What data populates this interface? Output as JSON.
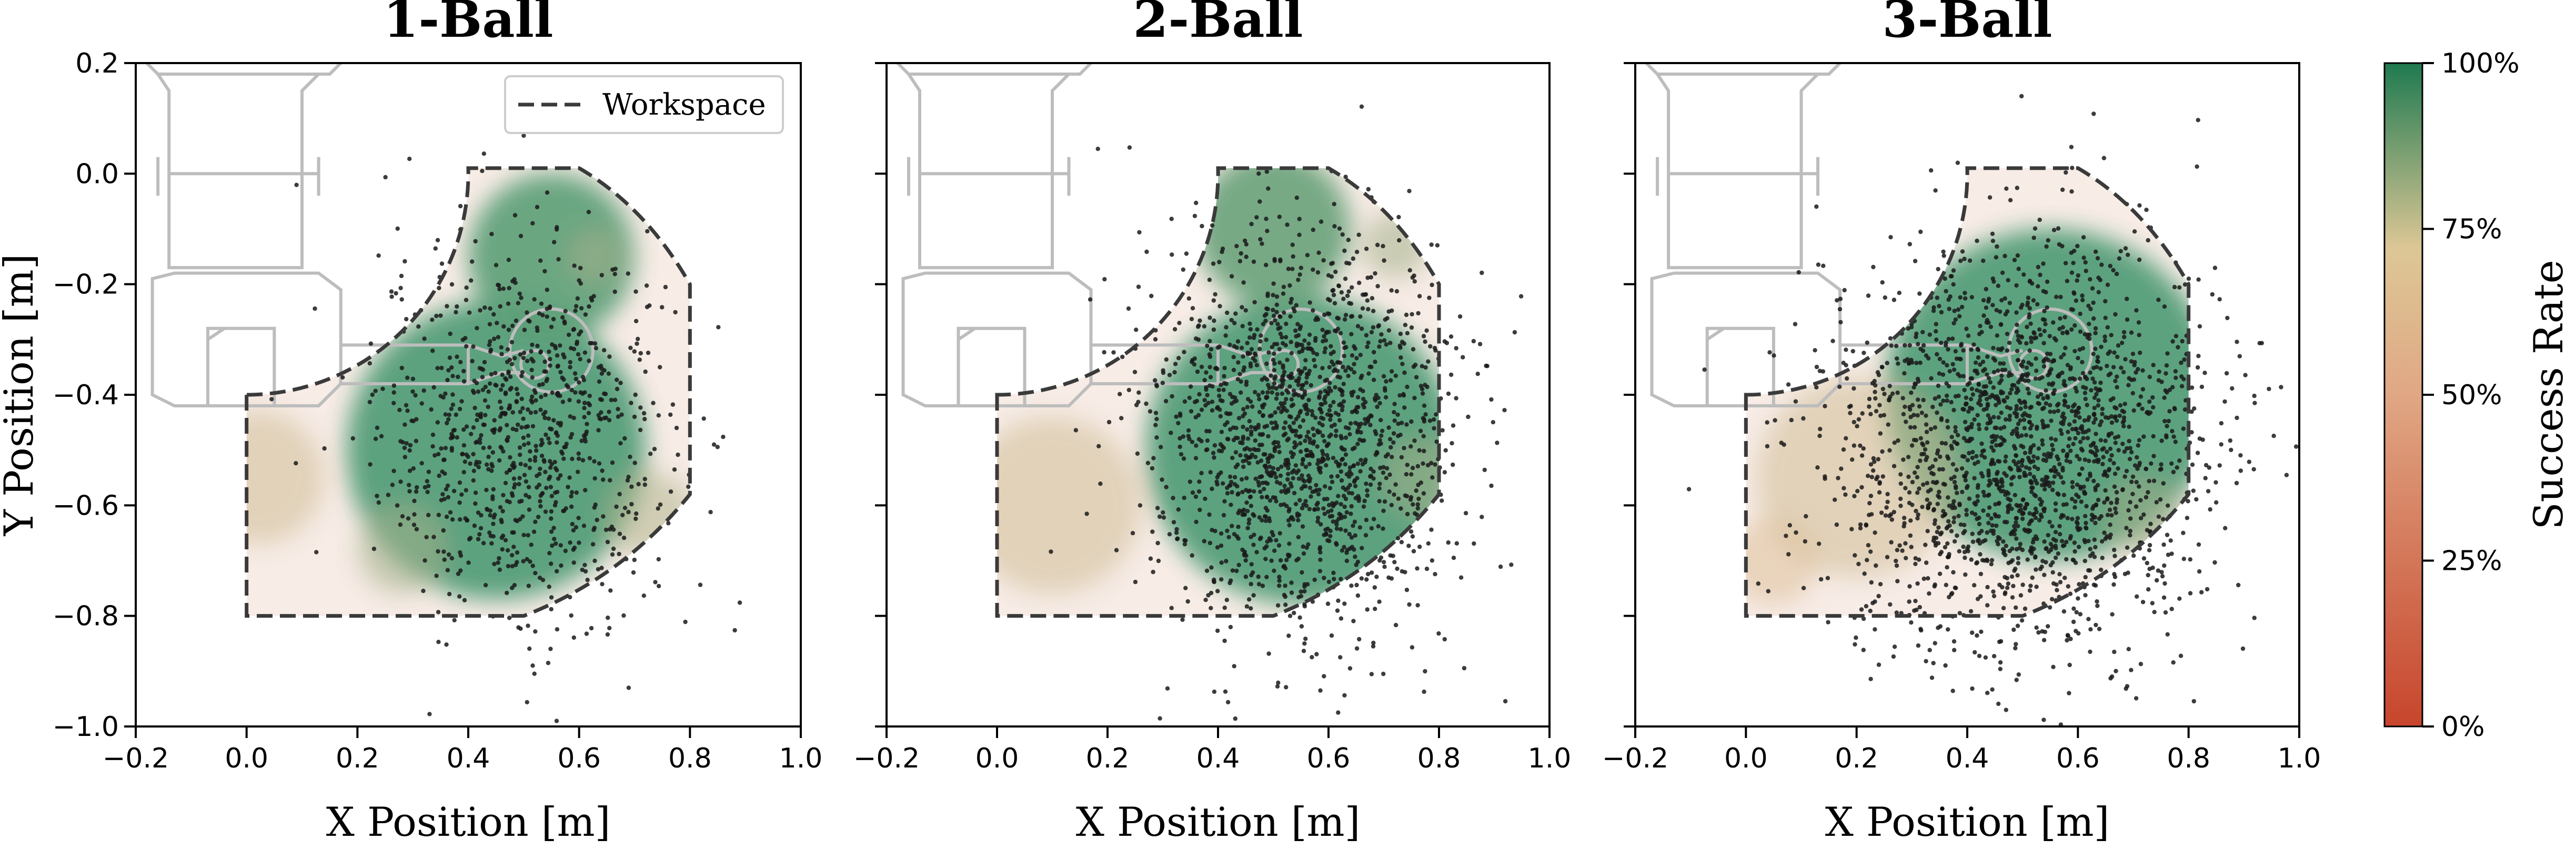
{
  "chart_data": [
    {
      "type": "scatter",
      "title": "1-Ball",
      "xlabel": "X Position [m]",
      "ylabel": "Y Position [m]",
      "xlim": [
        -0.2,
        1.0
      ],
      "ylim": [
        -1.0,
        0.2
      ],
      "xticks": [
        "−0.2",
        "0.0",
        "0.2",
        "0.4",
        "0.6",
        "0.8",
        "1.0"
      ],
      "yticks": [
        "−1.0",
        "−0.8",
        "−0.6",
        "−0.4",
        "−0.2",
        "0.0",
        "0.2"
      ],
      "legend": {
        "label": "Workspace",
        "placement": "top-right"
      },
      "points": {
        "n": 900,
        "cx": 0.5,
        "cy": -0.47,
        "sx": 0.13,
        "sy": 0.17
      },
      "success_blobs": [
        {
          "x": 0.45,
          "y": -0.5,
          "r": 0.27,
          "v": 1.0
        },
        {
          "x": 0.55,
          "y": -0.15,
          "r": 0.15,
          "v": 0.95
        },
        {
          "x": 0.02,
          "y": -0.55,
          "r": 0.12,
          "v": 0.55
        },
        {
          "x": 0.28,
          "y": -0.68,
          "r": 0.08,
          "v": 0.7
        },
        {
          "x": 0.73,
          "y": -0.62,
          "r": 0.08,
          "v": 0.65
        },
        {
          "x": 0.63,
          "y": -0.15,
          "r": 0.05,
          "v": 0.7
        }
      ]
    },
    {
      "type": "scatter",
      "title": "2-Ball",
      "xlabel": "X Position [m]",
      "ylabel": "",
      "xlim": [
        -0.2,
        1.0
      ],
      "ylim": [
        -1.0,
        0.2
      ],
      "xticks": [
        "−0.2",
        "0.0",
        "0.2",
        "0.4",
        "0.6",
        "0.8",
        "1.0"
      ],
      "yticks": [],
      "points": {
        "n": 1600,
        "cx": 0.55,
        "cy": -0.47,
        "sx": 0.14,
        "sy": 0.18
      },
      "success_blobs": [
        {
          "x": 0.55,
          "y": -0.5,
          "r": 0.28,
          "v": 1.0
        },
        {
          "x": 0.5,
          "y": -0.1,
          "r": 0.14,
          "v": 0.9
        },
        {
          "x": 0.1,
          "y": -0.6,
          "r": 0.16,
          "v": 0.55
        },
        {
          "x": 0.77,
          "y": -0.55,
          "r": 0.07,
          "v": 0.7
        },
        {
          "x": 0.72,
          "y": -0.13,
          "r": 0.06,
          "v": 0.7
        }
      ]
    },
    {
      "type": "scatter",
      "title": "3-Ball",
      "xlabel": "X Position [m]",
      "ylabel": "",
      "xlim": [
        -0.2,
        1.0
      ],
      "ylim": [
        -1.0,
        0.2
      ],
      "xticks": [
        "−0.2",
        "0.0",
        "0.2",
        "0.4",
        "0.6",
        "0.8",
        "1.0"
      ],
      "yticks": [],
      "points": {
        "n": 2000,
        "cx": 0.5,
        "cy": -0.5,
        "sx": 0.17,
        "sy": 0.19
      },
      "success_blobs": [
        {
          "x": 0.55,
          "y": -0.4,
          "r": 0.3,
          "v": 1.0
        },
        {
          "x": 0.2,
          "y": -0.55,
          "r": 0.18,
          "v": 0.55
        },
        {
          "x": 0.05,
          "y": -0.7,
          "r": 0.08,
          "v": 0.5
        },
        {
          "x": 0.72,
          "y": -0.62,
          "r": 0.07,
          "v": 0.7
        }
      ]
    }
  ],
  "colorbar": {
    "label": "Success Rate",
    "ticks": [
      "0%",
      "25%",
      "50%",
      "75%",
      "100%"
    ],
    "colors": [
      "#c7452c",
      "#d9b88c",
      "#2e8b5e"
    ]
  }
}
